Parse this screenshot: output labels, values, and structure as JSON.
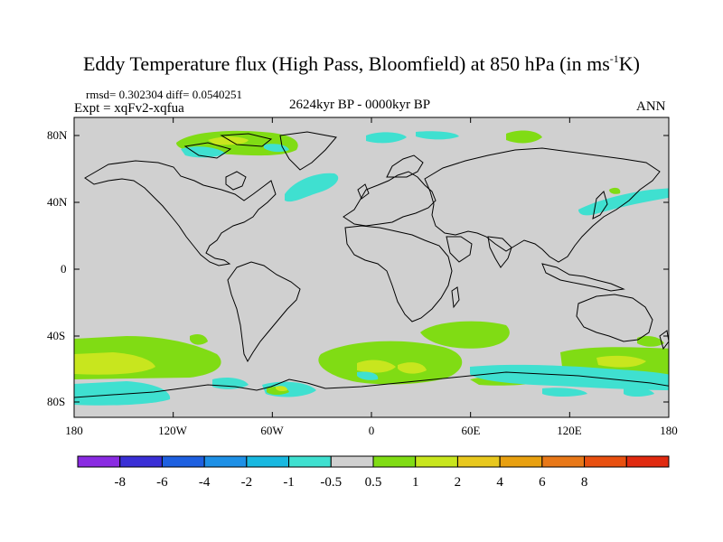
{
  "title_main": "Eddy Temperature flux (High Pass, Bloomfield) at 850 hPa (in ms",
  "title_sup": "-1",
  "title_end": "K)",
  "stats": "rmsd= 0.302304 diff= 0.0540251",
  "experiment": "Expt = xqFv2-xqfua",
  "period": "2624kyr BP - 0000kyr BP",
  "season": "ANN",
  "lat_labels": [
    "80N",
    "40N",
    "0",
    "40S",
    "80S"
  ],
  "lon_labels": [
    "180",
    "120W",
    "60W",
    "0",
    "60E",
    "120E",
    "180"
  ],
  "colorbar": {
    "colors": [
      "#8a2be2",
      "#3a2fd6",
      "#1e60e0",
      "#1e90e6",
      "#18b8e0",
      "#3fe0d0",
      "#d0d0d0",
      "#80dc14",
      "#c8e61e",
      "#e8c81e",
      "#e8a010",
      "#e87818",
      "#e85010",
      "#e02a10"
    ],
    "labels": [
      "-8",
      "-6",
      "-4",
      "-2",
      "-1",
      "-0.5",
      "0.5",
      "1",
      "2",
      "4",
      "6",
      "8"
    ]
  },
  "field_colors": {
    "background": "#d0d0d0",
    "neg_small": "#3fe0d0",
    "pos_small": "#80dc14",
    "pos_medium": "#c8e61e",
    "pos_large": "#e8c81e"
  }
}
